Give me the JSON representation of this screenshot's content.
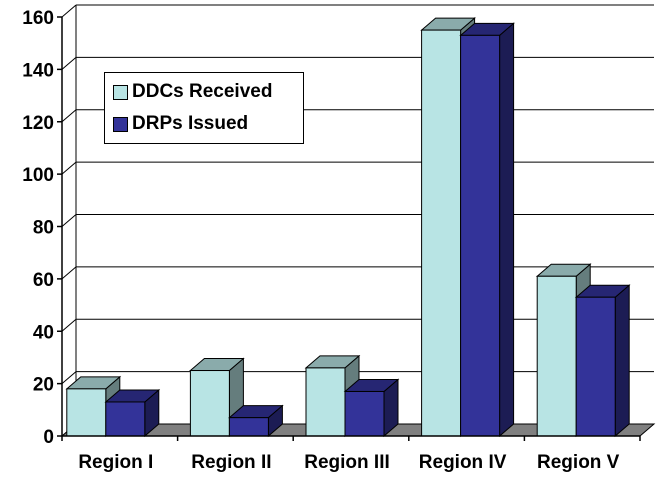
{
  "chart_data": {
    "type": "bar",
    "categories": [
      "Region I",
      "Region II",
      "Region III",
      "Region IV",
      "Region V"
    ],
    "series": [
      {
        "name": "DDCs Received",
        "values": [
          18,
          25,
          26,
          155,
          61
        ],
        "color": "#B8E4E4"
      },
      {
        "name": "DRPs Issued",
        "values": [
          13,
          7,
          17,
          153,
          53
        ],
        "color": "#333399"
      }
    ],
    "ylim": [
      0,
      160
    ],
    "yticks": [
      "0",
      "20",
      "40",
      "60",
      "80",
      "100",
      "120",
      "140",
      "160"
    ],
    "xlabel": "",
    "ylabel": "",
    "title": "",
    "grid": true,
    "legend_position": "top-left",
    "three_d": true
  }
}
